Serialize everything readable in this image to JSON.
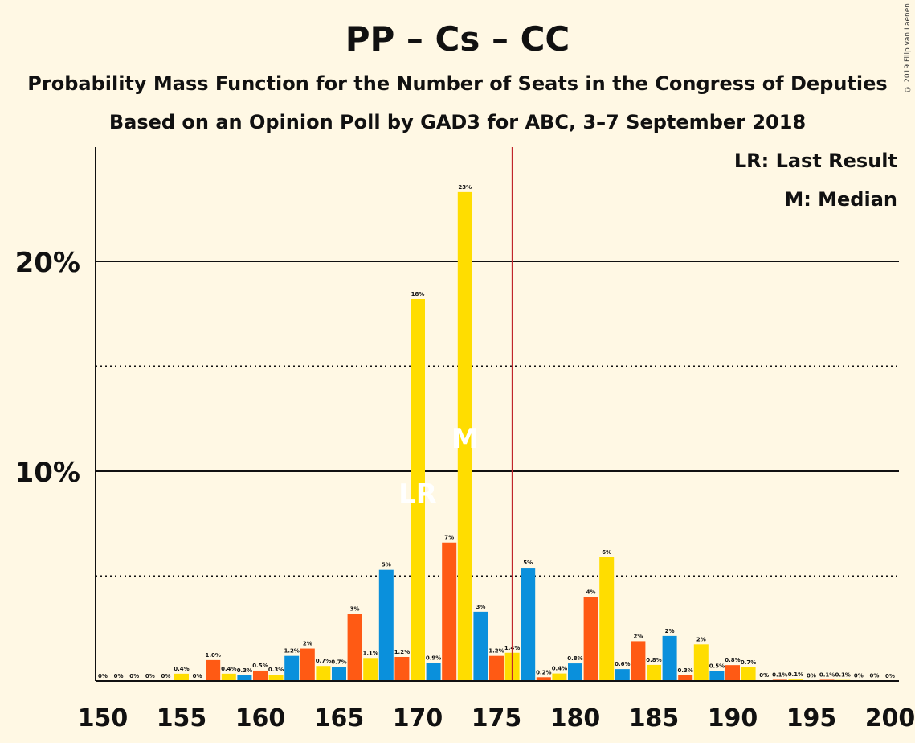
{
  "title": "PP – Cs – CC",
  "subtitle": "Probability Mass Function for the Number of Seats in the Congress of Deputies",
  "subtitle2": "Based on an Opinion Poll by GAD3 for ABC, 3–7 September 2018",
  "copyright": "© 2019 Filip van Laenen",
  "legend": {
    "lr": "LR: Last Result",
    "m": "M: Median"
  },
  "colors": {
    "background": "#FFF8E4",
    "PP": "#0A90DC",
    "Cs": "#FF5A14",
    "CC": "#FFDD00",
    "majority_line": "#C0262B"
  },
  "chart_data": {
    "type": "bar",
    "x": [
      150,
      151,
      152,
      153,
      154,
      155,
      156,
      157,
      158,
      159,
      160,
      161,
      162,
      163,
      164,
      165,
      166,
      167,
      168,
      169,
      170,
      171,
      172,
      173,
      174,
      175,
      176,
      177,
      178,
      179,
      180,
      181,
      182,
      183,
      184,
      185,
      186,
      187,
      188,
      189,
      190,
      191,
      192,
      193,
      194,
      195,
      196,
      197,
      198,
      199,
      200
    ],
    "values": [
      0,
      0,
      0,
      0,
      0,
      0.4,
      0,
      1.0,
      0.4,
      0.3,
      0.5,
      0.3,
      1.2,
      2,
      0.7,
      0.7,
      3,
      1.1,
      5,
      1.2,
      18,
      0.9,
      7,
      23,
      3,
      1.2,
      1.4,
      5,
      0.2,
      0.4,
      0.8,
      4,
      6,
      0.6,
      2,
      0.8,
      2,
      0.3,
      2,
      0.5,
      0.8,
      0.7,
      0,
      0.1,
      0.1,
      0,
      0.1,
      0.1,
      0,
      0,
      0
    ],
    "heights": [
      0,
      0,
      0,
      0,
      0,
      0.35,
      0,
      1.0,
      0.35,
      0.27,
      0.5,
      0.3,
      1.2,
      1.55,
      0.72,
      0.67,
      3.2,
      1.1,
      5.3,
      1.15,
      18.2,
      0.86,
      6.6,
      23.3,
      3.3,
      1.2,
      1.35,
      5.4,
      0.18,
      0.36,
      0.84,
      4.0,
      5.9,
      0.57,
      1.9,
      0.77,
      2.15,
      0.27,
      1.75,
      0.48,
      0.76,
      0.66,
      0.03,
      0.06,
      0.07,
      0.02,
      0.06,
      0.05,
      0.01,
      0.01,
      0
    ],
    "labels": [
      "0%",
      "0%",
      "0%",
      "0%",
      "0%",
      "0.4%",
      "0%",
      "1.0%",
      "0.4%",
      "0.3%",
      "0.5%",
      "0.3%",
      "1.2%",
      "2%",
      "0.7%",
      "0.7%",
      "3%",
      "1.1%",
      "5%",
      "1.2%",
      "18%",
      "0.9%",
      "7%",
      "23%",
      "3%",
      "1.2%",
      "1.4%",
      "5%",
      "0.2%",
      "0.4%",
      "0.8%",
      "4%",
      "6%",
      "0.6%",
      "2%",
      "0.8%",
      "2%",
      "0.3%",
      "2%",
      "0.5%",
      "0.8%",
      "0.7%",
      "0%",
      "0.1%",
      "0.1%",
      "0%",
      "0.1%",
      "0.1%",
      "0%",
      "0%",
      "0%"
    ],
    "bar_colors": [
      "CC",
      "CC",
      "CC",
      "CC",
      "CC",
      "CC",
      "CC",
      "Cs",
      "CC",
      "PP",
      "Cs",
      "CC",
      "PP",
      "Cs",
      "CC",
      "PP",
      "Cs",
      "CC",
      "PP",
      "Cs",
      "CC",
      "PP",
      "Cs",
      "CC",
      "PP",
      "Cs",
      "CC",
      "PP",
      "Cs",
      "CC",
      "PP",
      "Cs",
      "CC",
      "PP",
      "Cs",
      "CC",
      "PP",
      "Cs",
      "CC",
      "PP",
      "Cs",
      "CC",
      "PP",
      "Cs",
      "CC",
      "PP",
      "Cs",
      "CC",
      "PP",
      "Cs",
      "CC"
    ],
    "xticks": [
      "150",
      "155",
      "160",
      "165",
      "170",
      "175",
      "180",
      "185",
      "190",
      "195",
      "200"
    ],
    "yticks": [
      "10%",
      "20%"
    ],
    "ylim": [
      0,
      25
    ],
    "solid_gridlines": [
      10,
      20
    ],
    "dotted_gridlines": [
      5,
      15
    ],
    "majority_line_x": 176,
    "last_result": {
      "x": 170,
      "label": "LR"
    },
    "median": {
      "x": 173,
      "label": "M"
    }
  }
}
